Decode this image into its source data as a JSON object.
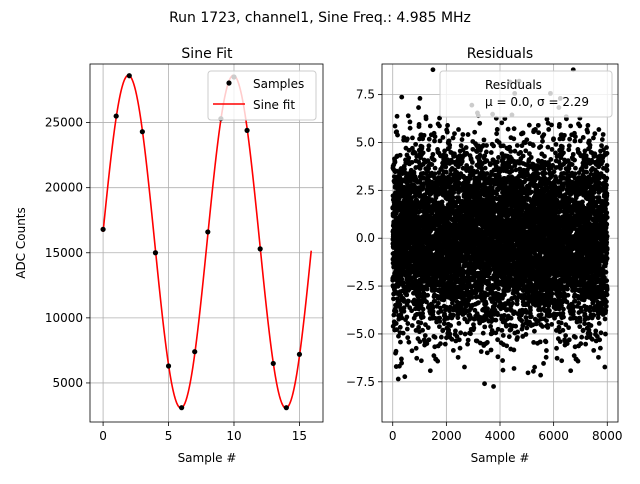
{
  "figure": {
    "suptitle": "Run 1723, channel1, Sine Freq.: 4.985 MHz"
  },
  "chart_data": [
    {
      "type": "scatter",
      "title": "Sine Fit",
      "xlabel": "Sample #",
      "ylabel": "ADC Counts",
      "xlim": [
        -1,
        16.8
      ],
      "ylim": [
        2000,
        29500
      ],
      "xticks": [
        0,
        5,
        10,
        15
      ],
      "yticks": [
        5000,
        10000,
        15000,
        20000,
        25000
      ],
      "grid": true,
      "legend_placement": "top-right",
      "legend": [
        "Samples",
        "Sine fit"
      ],
      "samples": {
        "name": "Samples",
        "x": [
          0,
          1,
          2,
          3,
          4,
          5,
          6,
          7,
          8,
          9,
          10,
          11,
          12,
          13,
          14,
          15
        ],
        "y": [
          16800,
          25500,
          28600,
          24300,
          15000,
          6300,
          3100,
          7400,
          16600,
          25300,
          28500,
          24400,
          15300,
          6500,
          3100,
          7200
        ]
      },
      "fit": {
        "name": "Sine fit",
        "amplitude": 12780,
        "offset": 15850,
        "period": 8.022,
        "phase_sample": 0.075,
        "x_range": [
          0,
          15.9
        ],
        "color": "#ff0000"
      },
      "colors": {
        "samples": "#000000",
        "fit": "#ff0000"
      }
    },
    {
      "type": "scatter",
      "title": "Residuals",
      "xlabel": "Sample #",
      "ylabel": "",
      "xlim": [
        -400,
        8400
      ],
      "ylim": [
        -9.6,
        9.1
      ],
      "xticks": [
        0,
        2000,
        4000,
        6000,
        8000
      ],
      "yticks": [
        -7.5,
        -5.0,
        -2.5,
        0.0,
        2.5,
        5.0,
        7.5
      ],
      "ytick_labels": [
        "−7.5",
        "−5.0",
        "−2.5",
        "0.0",
        "2.5",
        "5.0",
        "7.5"
      ],
      "grid": true,
      "legend_placement": "top-right",
      "legend": [
        "Residuals",
        "μ = 0.0, σ = 2.29"
      ],
      "residuals": {
        "name": "Residuals",
        "count": 8000,
        "x_range": [
          0,
          7999
        ],
        "mean": 0.0,
        "sigma": 2.29,
        "min": -9.0,
        "max": 8.8
      },
      "colors": {
        "points": "#000000"
      }
    }
  ]
}
